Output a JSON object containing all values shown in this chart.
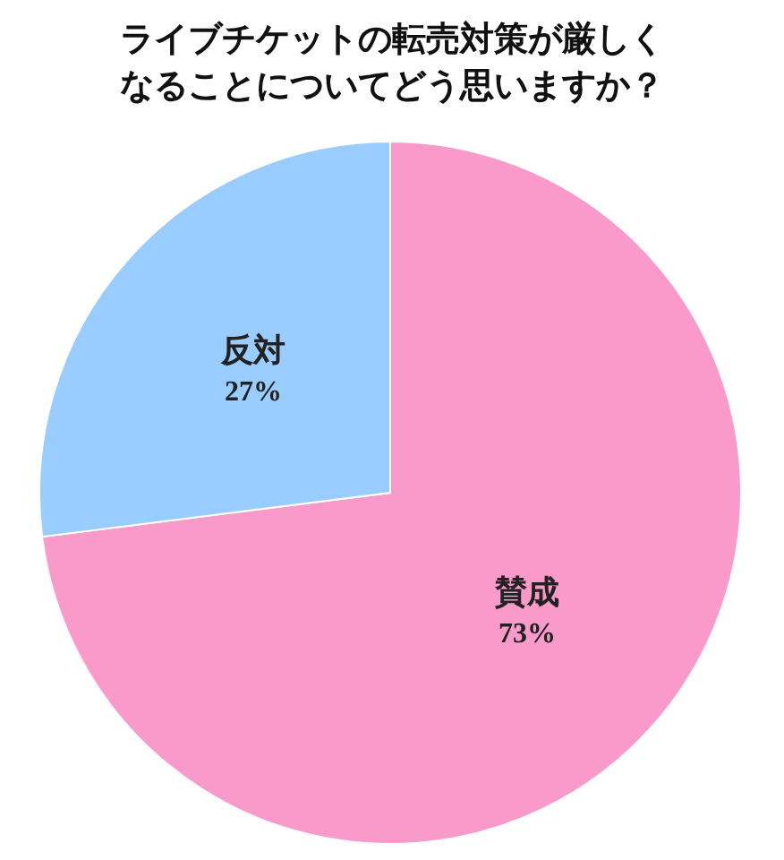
{
  "chart_data": {
    "type": "pie",
    "title": "ライブチケットの転売対策が厳しくなることについてどう思いますか？",
    "categories": [
      "賛成",
      "反対"
    ],
    "values": [
      73,
      27
    ],
    "value_labels": [
      "73%",
      "27%"
    ],
    "colors": [
      "#f99acb",
      "#99ccff"
    ],
    "legend": false
  }
}
